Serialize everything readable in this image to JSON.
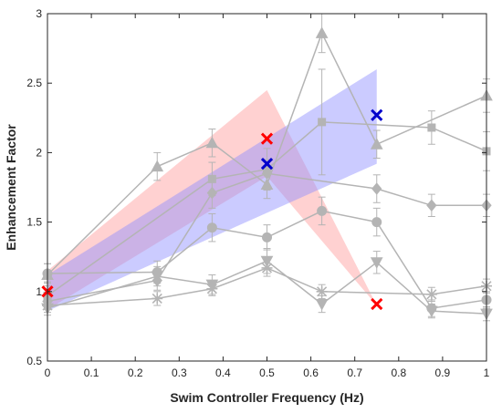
{
  "chart_data": {
    "type": "line",
    "title": "",
    "xlabel": "Swim Controller Frequency (Hz)",
    "ylabel": "Enhancement Factor",
    "xlim": [
      0,
      1
    ],
    "ylim": [
      0.5,
      3
    ],
    "xticks": [
      "0",
      "0.1",
      "0.2",
      "0.3",
      "0.4",
      "0.5",
      "0.6",
      "0.7",
      "0.8",
      "0.9",
      "1"
    ],
    "yticks": [
      "0.5",
      "1",
      "1.5",
      "2",
      "2.5",
      "3"
    ],
    "grid": false,
    "colors": {
      "series": "#b4b4b4",
      "red_band": "#ff9999",
      "blue_band": "#8c8cff",
      "red_marker": "#ff0000",
      "blue_marker": "#0000cc",
      "axis": "#262626"
    },
    "series": [
      {
        "marker": "triangle-up",
        "points": [
          {
            "x": 0,
            "y": 1.12,
            "err": 0.08
          },
          {
            "x": 0.25,
            "y": 1.9,
            "err": 0.1
          },
          {
            "x": 0.375,
            "y": 2.07,
            "err": 0.1
          },
          {
            "x": 0.5,
            "y": 1.77,
            "err": 0.1
          },
          {
            "x": 0.625,
            "y": 2.86,
            "err": 0.14
          },
          {
            "x": 0.75,
            "y": 2.06,
            "err": 0.1
          },
          {
            "x": 1.0,
            "y": 2.41,
            "err": 0.12
          }
        ]
      },
      {
        "marker": "square",
        "points": [
          {
            "x": 0,
            "y": 0.97,
            "err": 0.1
          },
          {
            "x": 0.375,
            "y": 1.81,
            "err": 0.12
          },
          {
            "x": 0.5,
            "y": 1.88,
            "err": 0.15
          },
          {
            "x": 0.625,
            "y": 2.22,
            "err": 0.38
          },
          {
            "x": 0.875,
            "y": 2.18,
            "err": 0.12
          },
          {
            "x": 1.0,
            "y": 2.01,
            "err": 0.14
          }
        ]
      },
      {
        "marker": "diamond",
        "points": [
          {
            "x": 0,
            "y": 0.93,
            "err": 0.05
          },
          {
            "x": 0.25,
            "y": 1.08,
            "err": 0.07
          },
          {
            "x": 0.375,
            "y": 1.71,
            "err": 0.11
          },
          {
            "x": 0.5,
            "y": 1.85,
            "err": 0.1
          },
          {
            "x": 0.75,
            "y": 1.74,
            "err": 0.1
          },
          {
            "x": 0.875,
            "y": 1.62,
            "err": 0.08
          },
          {
            "x": 1.0,
            "y": 1.62,
            "err": 0.08
          }
        ]
      },
      {
        "marker": "circle",
        "points": [
          {
            "x": 0,
            "y": 1.13,
            "err": 0.07
          },
          {
            "x": 0.25,
            "y": 1.14,
            "err": 0.08
          },
          {
            "x": 0.375,
            "y": 1.46,
            "err": 0.1
          },
          {
            "x": 0.5,
            "y": 1.39,
            "err": 0.09
          },
          {
            "x": 0.625,
            "y": 1.58,
            "err": 0.1
          },
          {
            "x": 0.75,
            "y": 1.5,
            "err": 0.1
          },
          {
            "x": 0.875,
            "y": 0.88,
            "err": 0.06
          },
          {
            "x": 1.0,
            "y": 0.94,
            "err": 0.06
          }
        ]
      },
      {
        "marker": "triangle-down",
        "points": [
          {
            "x": 0,
            "y": 0.88,
            "err": 0.05
          },
          {
            "x": 0.25,
            "y": 1.11,
            "err": 0.07
          },
          {
            "x": 0.375,
            "y": 1.05,
            "err": 0.07
          },
          {
            "x": 0.5,
            "y": 1.22,
            "err": 0.09
          },
          {
            "x": 0.625,
            "y": 0.91,
            "err": 0.06
          },
          {
            "x": 0.75,
            "y": 1.21,
            "err": 0.08
          },
          {
            "x": 0.875,
            "y": 0.86,
            "err": 0.05
          },
          {
            "x": 1.0,
            "y": 0.84,
            "err": 0.05
          }
        ]
      },
      {
        "marker": "star",
        "points": [
          {
            "x": 0,
            "y": 0.9,
            "err": 0.05
          },
          {
            "x": 0.25,
            "y": 0.95,
            "err": 0.05
          },
          {
            "x": 0.375,
            "y": 1.02,
            "err": 0.05
          },
          {
            "x": 0.5,
            "y": 1.17,
            "err": 0.06
          },
          {
            "x": 0.625,
            "y": 1.0,
            "err": 0.05
          },
          {
            "x": 0.875,
            "y": 0.98,
            "err": 0.05
          },
          {
            "x": 1.0,
            "y": 1.04,
            "err": 0.05
          }
        ]
      }
    ],
    "bands": [
      {
        "color": "red",
        "upper": [
          {
            "x": 0,
            "y": 1.15
          },
          {
            "x": 0.5,
            "y": 2.45
          },
          {
            "x": 0.75,
            "y": 0.9
          }
        ],
        "lower": [
          {
            "x": 0,
            "y": 0.87
          },
          {
            "x": 0.5,
            "y": 1.83
          },
          {
            "x": 0.75,
            "y": 0.9
          }
        ]
      },
      {
        "color": "blue",
        "upper": [
          {
            "x": 0,
            "y": 1.12
          },
          {
            "x": 0.75,
            "y": 2.6
          }
        ],
        "lower": [
          {
            "x": 0,
            "y": 0.86
          },
          {
            "x": 0.75,
            "y": 1.92
          }
        ]
      }
    ],
    "markers_x": [
      {
        "color": "red",
        "points": [
          {
            "x": 0,
            "y": 1.0
          },
          {
            "x": 0.5,
            "y": 2.1
          },
          {
            "x": 0.75,
            "y": 0.91
          }
        ]
      },
      {
        "color": "blue",
        "points": [
          {
            "x": 0.5,
            "y": 1.92
          },
          {
            "x": 0.75,
            "y": 2.27
          }
        ]
      }
    ]
  }
}
